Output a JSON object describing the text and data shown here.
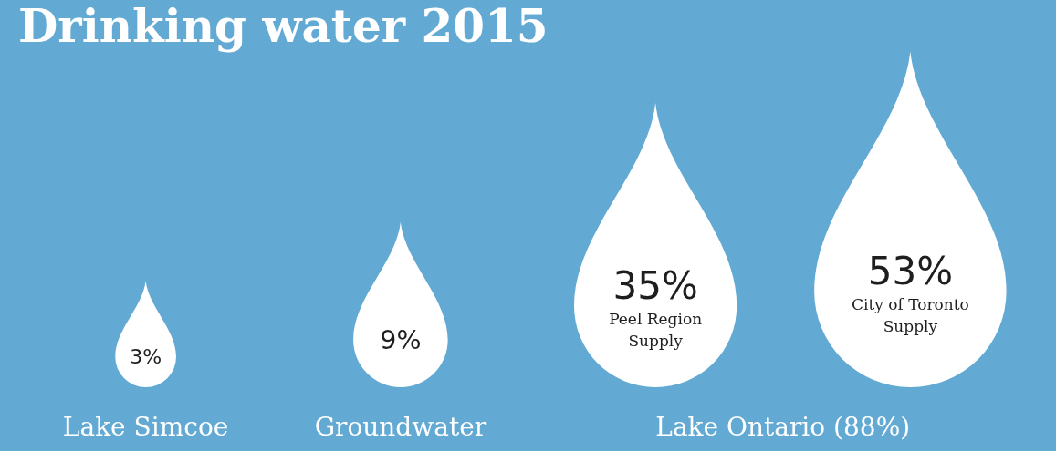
{
  "chart_data": {
    "type": "other",
    "title": "Drinking water 2015",
    "categories": [
      "Lake Simcoe",
      "Groundwater",
      "Peel Region Supply",
      "City of Toronto Supply"
    ],
    "values": [
      3,
      9,
      35,
      53
    ],
    "value_labels": [
      "3%",
      "9%",
      "35%",
      "53%"
    ],
    "color": "#ffffff",
    "annotations": [
      "Lake Ontario (88%)"
    ],
    "legend": false
  }
}
